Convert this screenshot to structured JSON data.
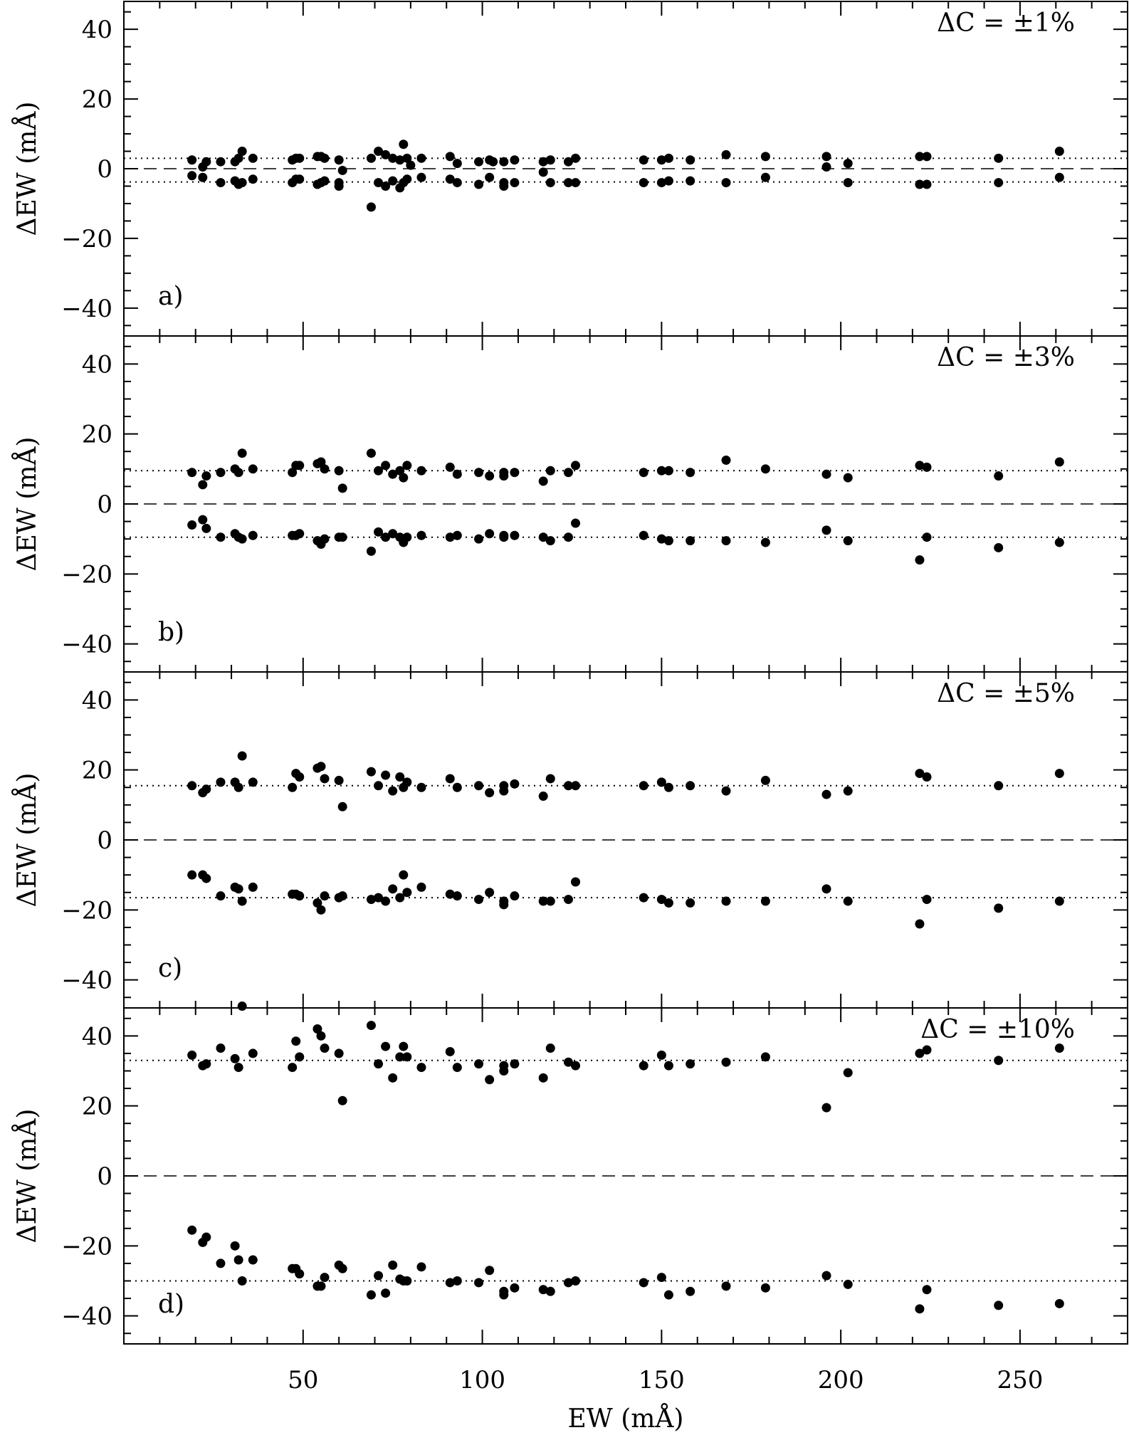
{
  "chart_data": {
    "type": "scatter",
    "xlabel": "EW (mÅ)",
    "ylabel": "ΔEW (mÅ)",
    "xlim": [
      0,
      280
    ],
    "xticks": [
      50,
      100,
      150,
      200,
      250
    ],
    "xtick_labels": [
      "50",
      "100",
      "150",
      "200",
      "250"
    ],
    "ylim": [
      -48,
      48
    ],
    "yticks": [
      -40,
      -20,
      0,
      20,
      40
    ],
    "ytick_labels": [
      "−40",
      "−20",
      "0",
      "20",
      "40"
    ],
    "grid": false,
    "panels": [
      {
        "label": "a)",
        "annotation": "ΔC = ±1%",
        "ref_lines": [
          3,
          -3.8
        ],
        "x": [
          19,
          19,
          22,
          22,
          23,
          27,
          27,
          31,
          31,
          32,
          32,
          33,
          33,
          36,
          36,
          47,
          47,
          48,
          48,
          49,
          49,
          54,
          54,
          55,
          55,
          56,
          56,
          60,
          60,
          60,
          61,
          69,
          69,
          71,
          71,
          73,
          73,
          75,
          75,
          77,
          77,
          78,
          78,
          79,
          79,
          80,
          83,
          83,
          91,
          91,
          93,
          93,
          99,
          99,
          102,
          102,
          103,
          106,
          106,
          106,
          109,
          109,
          117,
          117,
          119,
          119,
          124,
          124,
          126,
          126,
          145,
          145,
          150,
          150,
          152,
          152,
          158,
          158,
          168,
          168,
          179,
          179,
          196,
          196,
          202,
          202,
          222,
          222,
          224,
          224,
          244,
          244,
          261,
          261
        ],
        "y": [
          2.5,
          -2,
          0.5,
          -2.5,
          2,
          2,
          -4,
          2,
          -3.5,
          3,
          -4.5,
          5,
          -4,
          3,
          -3,
          2.5,
          -4,
          3,
          -3,
          3,
          -3,
          3.5,
          -4.5,
          3.5,
          -4,
          3,
          -3.5,
          2.5,
          -5,
          -4,
          -0.5,
          3,
          -11,
          5,
          -4,
          4,
          -5,
          3,
          -3.5,
          2.5,
          -5.5,
          7,
          -4,
          3,
          -3,
          1,
          3,
          -2.5,
          3.5,
          -3,
          1.5,
          -4,
          2,
          -4.5,
          2.5,
          -2.5,
          2,
          2,
          -4,
          -5,
          2.5,
          -4,
          2,
          -1,
          2.5,
          -4,
          2,
          -4,
          3,
          -4,
          2.5,
          -4,
          2.5,
          -4,
          3,
          -3.5,
          2.5,
          -3.5,
          4,
          -4,
          3.5,
          -2.5,
          3.5,
          0.5,
          1.5,
          -4,
          3.5,
          -4.5,
          3.5,
          -4.5,
          3,
          -4,
          5,
          -2.5
        ]
      },
      {
        "label": "b)",
        "annotation": "ΔC = ±3%",
        "ref_lines": [
          9.5,
          -9.5
        ],
        "x": [
          19,
          19,
          22,
          22,
          23,
          23,
          27,
          27,
          31,
          31,
          32,
          32,
          33,
          33,
          36,
          36,
          47,
          47,
          48,
          48,
          49,
          49,
          54,
          54,
          55,
          55,
          56,
          56,
          60,
          60,
          61,
          61,
          69,
          69,
          71,
          71,
          73,
          73,
          75,
          75,
          77,
          77,
          78,
          78,
          79,
          79,
          83,
          83,
          91,
          91,
          93,
          93,
          99,
          99,
          102,
          102,
          106,
          106,
          106,
          106,
          109,
          109,
          117,
          117,
          119,
          119,
          124,
          124,
          126,
          126,
          145,
          145,
          150,
          150,
          152,
          152,
          158,
          158,
          168,
          168,
          179,
          179,
          196,
          196,
          202,
          202,
          222,
          222,
          224,
          224,
          244,
          244,
          261,
          261
        ],
        "y": [
          9,
          -6,
          5.5,
          -4.5,
          8,
          -7,
          9,
          -9.5,
          10,
          -8.5,
          9,
          -9.5,
          14.5,
          -10,
          10,
          -9,
          9,
          -9,
          11,
          -9,
          11,
          -8.5,
          11.5,
          -10.5,
          12,
          -11.5,
          10,
          -10,
          9.5,
          -9.5,
          4.5,
          -9.5,
          14.5,
          -13.5,
          9.5,
          -8,
          11,
          -9.5,
          8.5,
          -8.5,
          9.5,
          -9.5,
          7.5,
          -11,
          11,
          -9.5,
          9.5,
          -9,
          10.5,
          -9.5,
          8.5,
          -9,
          9,
          -10,
          8,
          -8.5,
          9,
          -9.5,
          8,
          -9,
          9,
          -9,
          6.5,
          -9.5,
          9.5,
          -10.5,
          9,
          -9.5,
          11,
          -5.5,
          9,
          -9,
          9.5,
          -10,
          9.5,
          -10.5,
          9,
          -10.5,
          12.5,
          -10.5,
          10,
          -11,
          8.5,
          -7.5,
          7.5,
          -10.5,
          11,
          -16,
          10.5,
          -9.5,
          8,
          -12.5,
          12,
          -11
        ]
      },
      {
        "label": "c)",
        "annotation": "ΔC = ±5%",
        "ref_lines": [
          15.5,
          -16.5
        ],
        "x": [
          19,
          19,
          22,
          22,
          23,
          23,
          27,
          27,
          31,
          31,
          32,
          32,
          33,
          33,
          36,
          36,
          47,
          47,
          48,
          48,
          49,
          49,
          54,
          54,
          55,
          55,
          56,
          56,
          60,
          60,
          61,
          61,
          69,
          69,
          71,
          71,
          73,
          73,
          75,
          75,
          77,
          77,
          78,
          78,
          79,
          79,
          83,
          83,
          91,
          91,
          93,
          93,
          99,
          99,
          102,
          102,
          106,
          106,
          106,
          106,
          109,
          109,
          117,
          117,
          119,
          119,
          124,
          124,
          126,
          126,
          145,
          145,
          150,
          150,
          152,
          152,
          158,
          158,
          168,
          168,
          179,
          179,
          196,
          196,
          202,
          202,
          222,
          222,
          224,
          224,
          244,
          244,
          261,
          261
        ],
        "y": [
          15.5,
          -10,
          13.5,
          -10,
          14.5,
          -11,
          16.5,
          -16,
          16.5,
          -13.5,
          15,
          -14,
          24,
          -17.5,
          16.5,
          -13.5,
          15,
          -15.5,
          19,
          -15.5,
          18,
          -16,
          20.5,
          -18,
          21,
          -20,
          17.5,
          -16,
          17,
          -16.5,
          9.5,
          -16,
          19.5,
          -17,
          15.5,
          -16.5,
          18.5,
          -17.5,
          14,
          -14,
          18,
          -16.5,
          15,
          -10,
          16.5,
          -15,
          15,
          -13.5,
          17.5,
          -15.5,
          15,
          -16,
          15.5,
          -17,
          13.5,
          -15,
          15.5,
          -17.5,
          14,
          -18.5,
          16,
          -16,
          12.5,
          -17.5,
          17.5,
          -17.5,
          15.5,
          -17,
          15.5,
          -12,
          15.5,
          -16.5,
          16.5,
          -17,
          15,
          -18,
          15.5,
          -18,
          14,
          -17.5,
          17,
          -17.5,
          13,
          -14,
          14,
          -17.5,
          19,
          -24,
          18,
          -17,
          15.5,
          -19.5,
          19,
          -17.5
        ]
      },
      {
        "label": "d)",
        "annotation": "ΔC = ±10%",
        "ref_lines": [
          33,
          -30
        ],
        "x": [
          19,
          19,
          22,
          22,
          23,
          23,
          27,
          27,
          31,
          31,
          32,
          32,
          33,
          33,
          36,
          36,
          47,
          47,
          48,
          48,
          49,
          49,
          54,
          54,
          55,
          55,
          56,
          56,
          60,
          60,
          61,
          61,
          69,
          69,
          71,
          71,
          73,
          73,
          75,
          75,
          77,
          77,
          78,
          78,
          79,
          79,
          83,
          83,
          91,
          91,
          93,
          93,
          99,
          99,
          102,
          102,
          106,
          106,
          106,
          106,
          109,
          109,
          117,
          117,
          119,
          119,
          124,
          124,
          126,
          126,
          145,
          145,
          150,
          150,
          152,
          152,
          158,
          158,
          168,
          168,
          179,
          179,
          196,
          196,
          202,
          202,
          222,
          222,
          224,
          224,
          244,
          244,
          261,
          261
        ],
        "y": [
          34.5,
          -15.5,
          31.5,
          -19,
          32,
          -17.5,
          36.5,
          -25,
          33.5,
          -20,
          31,
          -24,
          48.5,
          -30,
          35,
          -24,
          31,
          -26.5,
          38.5,
          -26.5,
          34,
          -28,
          42,
          -31.5,
          40,
          -31.5,
          36.5,
          -29,
          35,
          -25.5,
          21.5,
          -26.5,
          43,
          -34,
          32,
          -28.5,
          37,
          -33.5,
          28,
          -25.5,
          34,
          -29.5,
          37,
          -30,
          34,
          -30,
          31,
          -26,
          35.5,
          -30.5,
          31,
          -30,
          32,
          -30.5,
          27.5,
          -27,
          31.5,
          -33,
          30,
          -34,
          32,
          -32,
          28,
          -32.5,
          36.5,
          -33,
          32.5,
          -30.5,
          31.5,
          -30,
          31.5,
          -30.5,
          34.5,
          -29,
          31.5,
          -34,
          32,
          -33,
          32.5,
          -31.5,
          34,
          -32,
          19.5,
          -28.5,
          29.5,
          -31,
          35,
          -38,
          36,
          -32.5,
          33,
          -37,
          36.5,
          -36.5
        ]
      }
    ]
  }
}
